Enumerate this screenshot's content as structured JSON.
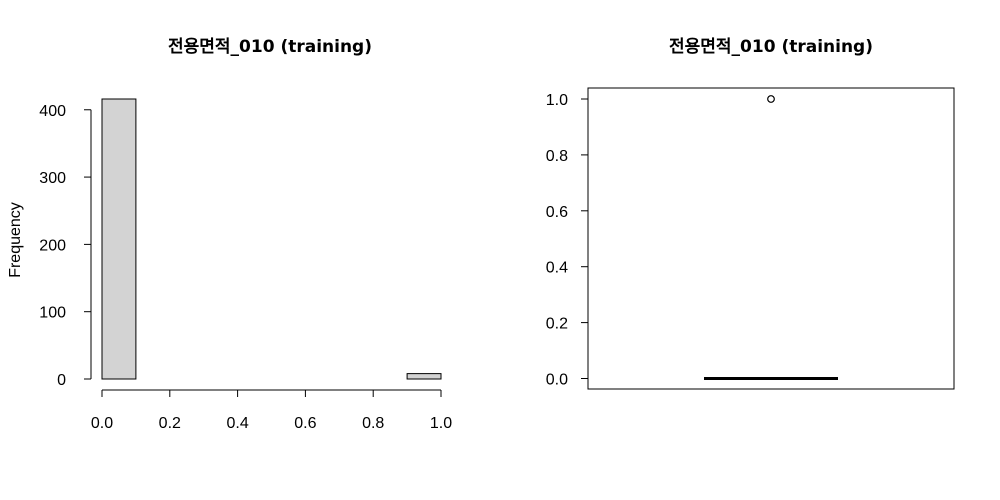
{
  "chart_data": [
    {
      "type": "bar",
      "subtype": "histogram",
      "title": "전용면적_010 (training)",
      "xlabel": "",
      "ylabel": "Frequency",
      "bins": [
        {
          "x0": 0.0,
          "x1": 0.1,
          "count": 416
        },
        {
          "x0": 0.1,
          "x1": 0.2,
          "count": 0
        },
        {
          "x0": 0.2,
          "x1": 0.3,
          "count": 0
        },
        {
          "x0": 0.3,
          "x1": 0.4,
          "count": 0
        },
        {
          "x0": 0.4,
          "x1": 0.5,
          "count": 0
        },
        {
          "x0": 0.5,
          "x1": 0.6,
          "count": 0
        },
        {
          "x0": 0.6,
          "x1": 0.7,
          "count": 0
        },
        {
          "x0": 0.7,
          "x1": 0.8,
          "count": 0
        },
        {
          "x0": 0.8,
          "x1": 0.9,
          "count": 0
        },
        {
          "x0": 0.9,
          "x1": 1.0,
          "count": 8
        }
      ],
      "xlim": [
        0,
        1
      ],
      "ylim": [
        0,
        416
      ],
      "xticks": [
        "0.0",
        "0.2",
        "0.4",
        "0.6",
        "0.8",
        "1.0"
      ],
      "yticks": [
        "0",
        "100",
        "200",
        "300",
        "400"
      ],
      "bar_color": "#d3d3d3"
    },
    {
      "type": "box",
      "title": "전용면적_010 (training)",
      "xlabel": "",
      "ylabel": "",
      "ylim": [
        0,
        1
      ],
      "yticks": [
        "0.0",
        "0.2",
        "0.4",
        "0.6",
        "0.8",
        "1.0"
      ],
      "stats": {
        "min": 0,
        "q1": 0,
        "median": 0,
        "q3": 0,
        "max": 0
      },
      "outliers": [
        1.0
      ]
    }
  ]
}
